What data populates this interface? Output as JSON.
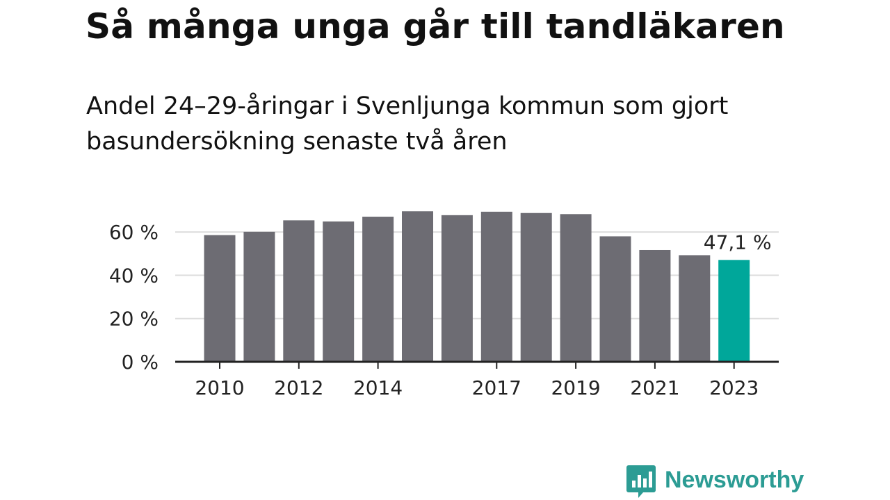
{
  "title": "Så många unga går till tandläkaren",
  "subtitle": "Andel 24–29-åringar i Svenljunga kommun som gjort basundersökning senaste två åren",
  "brand": {
    "name": "Newsworthy",
    "color": "#2c9c94",
    "icon": "newsworthy-logo-icon"
  },
  "colors": {
    "bar": "#6d6c73",
    "highlight": "#00a79a",
    "grid": "#dddddd",
    "axis": "#222222"
  },
  "chart_data": {
    "type": "bar",
    "categories": [
      "2010",
      "2011",
      "2012",
      "2013",
      "2014",
      "2015",
      "2016",
      "2017",
      "2018",
      "2019",
      "2020",
      "2021",
      "2022",
      "2023"
    ],
    "values": [
      58.6,
      60.1,
      65.4,
      64.9,
      67.1,
      69.6,
      67.8,
      69.4,
      68.8,
      68.3,
      58.0,
      51.7,
      49.3,
      47.1
    ],
    "x_tick_labels": [
      "2010",
      "2012",
      "2014",
      "2017",
      "2019",
      "2021",
      "2023"
    ],
    "y_ticks": [
      0,
      20,
      40,
      60
    ],
    "y_tick_labels": [
      "0 %",
      "20 %",
      "40 %",
      "60 %"
    ],
    "ylim": [
      0,
      70
    ],
    "highlight_index": 13,
    "highlight_label": "47,1 %",
    "grid": true,
    "legend": false
  }
}
